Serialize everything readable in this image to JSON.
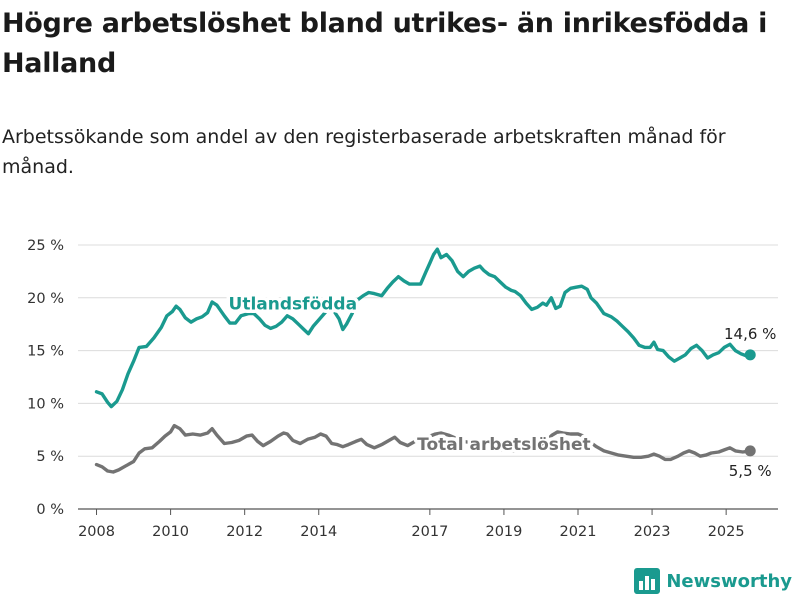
{
  "title": "Högre arbetslöshet bland utrikes- än inrikesfödda i Halland",
  "subtitle": "Arbetssökande som andel av den registerbaserade arbetskraften månad för månad.",
  "brand": {
    "name": "Newsworthy",
    "color": "#1a9a8f",
    "icon": "bar-chart-logo-icon"
  },
  "chart_data": {
    "type": "line",
    "y_ticks": [
      {
        "value": 0,
        "label": "0 %"
      },
      {
        "value": 5,
        "label": "5 %"
      },
      {
        "value": 10,
        "label": "10 %"
      },
      {
        "value": 15,
        "label": "15 %"
      },
      {
        "value": 20,
        "label": "20 %"
      },
      {
        "value": 25,
        "label": "25 %"
      }
    ],
    "x_ticks": [
      {
        "value": 2008,
        "label": "2008"
      },
      {
        "value": 2010,
        "label": "2010"
      },
      {
        "value": 2012,
        "label": "2012"
      },
      {
        "value": 2014,
        "label": "2014"
      },
      {
        "value": 2017,
        "label": "2017"
      },
      {
        "value": 2019,
        "label": "2019"
      },
      {
        "value": 2021,
        "label": "2021"
      },
      {
        "value": 2023,
        "label": "2023"
      },
      {
        "value": 2025,
        "label": "2025"
      }
    ],
    "xlim": [
      2007.5,
      2026.4
    ],
    "ylim": [
      0,
      25
    ],
    "grid": true,
    "series": [
      {
        "name": "Utlandsfödda",
        "color": "#1a9a8f",
        "end_label": "14,6 %",
        "points": [
          [
            2008.0,
            11.1
          ],
          [
            2008.15,
            10.9
          ],
          [
            2008.3,
            10.1
          ],
          [
            2008.4,
            9.7
          ],
          [
            2008.55,
            10.2
          ],
          [
            2008.7,
            11.3
          ],
          [
            2008.85,
            12.8
          ],
          [
            2009.0,
            14.0
          ],
          [
            2009.15,
            15.3
          ],
          [
            2009.35,
            15.4
          ],
          [
            2009.55,
            16.2
          ],
          [
            2009.75,
            17.2
          ],
          [
            2009.9,
            18.3
          ],
          [
            2010.05,
            18.7
          ],
          [
            2010.15,
            19.2
          ],
          [
            2010.25,
            18.9
          ],
          [
            2010.4,
            18.1
          ],
          [
            2010.55,
            17.7
          ],
          [
            2010.7,
            18.0
          ],
          [
            2010.85,
            18.2
          ],
          [
            2011.0,
            18.6
          ],
          [
            2011.12,
            19.6
          ],
          [
            2011.25,
            19.3
          ],
          [
            2011.45,
            18.3
          ],
          [
            2011.6,
            17.6
          ],
          [
            2011.75,
            17.6
          ],
          [
            2011.9,
            18.3
          ],
          [
            2012.1,
            18.5
          ],
          [
            2012.25,
            18.5
          ],
          [
            2012.4,
            18.0
          ],
          [
            2012.55,
            17.4
          ],
          [
            2012.7,
            17.1
          ],
          [
            2012.85,
            17.3
          ],
          [
            2013.0,
            17.7
          ],
          [
            2013.15,
            18.3
          ],
          [
            2013.3,
            18.0
          ],
          [
            2013.45,
            17.5
          ],
          [
            2013.6,
            17.0
          ],
          [
            2013.72,
            16.6
          ],
          [
            2013.85,
            17.3
          ],
          [
            2014.0,
            17.9
          ],
          [
            2014.2,
            18.7
          ],
          [
            2014.4,
            18.8
          ],
          [
            2014.55,
            18.0
          ],
          [
            2014.65,
            17.0
          ],
          [
            2014.75,
            17.5
          ],
          [
            2014.9,
            18.5
          ],
          [
            2015.05,
            19.8
          ],
          [
            2015.2,
            20.2
          ],
          [
            2015.35,
            20.5
          ],
          [
            2015.5,
            20.4
          ],
          [
            2015.7,
            20.2
          ],
          [
            2015.85,
            20.9
          ],
          [
            2016.0,
            21.5
          ],
          [
            2016.15,
            22.0
          ],
          [
            2016.3,
            21.6
          ],
          [
            2016.45,
            21.3
          ],
          [
            2016.6,
            21.3
          ],
          [
            2016.75,
            21.3
          ],
          [
            2016.9,
            22.5
          ],
          [
            2017.0,
            23.3
          ],
          [
            2017.1,
            24.1
          ],
          [
            2017.2,
            24.6
          ],
          [
            2017.3,
            23.8
          ],
          [
            2017.45,
            24.1
          ],
          [
            2017.6,
            23.5
          ],
          [
            2017.75,
            22.5
          ],
          [
            2017.9,
            22.0
          ],
          [
            2018.05,
            22.5
          ],
          [
            2018.2,
            22.8
          ],
          [
            2018.35,
            23.0
          ],
          [
            2018.45,
            22.6
          ],
          [
            2018.6,
            22.2
          ],
          [
            2018.75,
            22.0
          ],
          [
            2018.9,
            21.5
          ],
          [
            2019.05,
            21.0
          ],
          [
            2019.2,
            20.7
          ],
          [
            2019.3,
            20.6
          ],
          [
            2019.45,
            20.2
          ],
          [
            2019.6,
            19.5
          ],
          [
            2019.75,
            18.9
          ],
          [
            2019.9,
            19.1
          ],
          [
            2020.05,
            19.5
          ],
          [
            2020.15,
            19.3
          ],
          [
            2020.28,
            20.0
          ],
          [
            2020.4,
            19.0
          ],
          [
            2020.52,
            19.2
          ],
          [
            2020.65,
            20.5
          ],
          [
            2020.8,
            20.9
          ],
          [
            2020.95,
            21.0
          ],
          [
            2021.1,
            21.1
          ],
          [
            2021.25,
            20.8
          ],
          [
            2021.35,
            20.0
          ],
          [
            2021.5,
            19.5
          ],
          [
            2021.7,
            18.5
          ],
          [
            2021.9,
            18.2
          ],
          [
            2022.05,
            17.8
          ],
          [
            2022.2,
            17.3
          ],
          [
            2022.35,
            16.8
          ],
          [
            2022.5,
            16.2
          ],
          [
            2022.65,
            15.5
          ],
          [
            2022.8,
            15.3
          ],
          [
            2022.95,
            15.3
          ],
          [
            2023.05,
            15.8
          ],
          [
            2023.15,
            15.1
          ],
          [
            2023.3,
            15.0
          ],
          [
            2023.45,
            14.4
          ],
          [
            2023.6,
            14.0
          ],
          [
            2023.75,
            14.3
          ],
          [
            2023.9,
            14.6
          ],
          [
            2024.05,
            15.2
          ],
          [
            2024.2,
            15.5
          ],
          [
            2024.35,
            15.0
          ],
          [
            2024.5,
            14.3
          ],
          [
            2024.65,
            14.6
          ],
          [
            2024.8,
            14.8
          ],
          [
            2024.95,
            15.3
          ],
          [
            2025.1,
            15.6
          ],
          [
            2025.25,
            15.0
          ],
          [
            2025.4,
            14.7
          ],
          [
            2025.55,
            14.5
          ],
          [
            2025.65,
            14.6
          ]
        ]
      },
      {
        "name": "Total arbetslöshet",
        "color": "#737373",
        "end_label": "5,5 %",
        "points": [
          [
            2008.0,
            4.2
          ],
          [
            2008.15,
            4.0
          ],
          [
            2008.3,
            3.6
          ],
          [
            2008.45,
            3.5
          ],
          [
            2008.6,
            3.7
          ],
          [
            2008.8,
            4.1
          ],
          [
            2009.0,
            4.5
          ],
          [
            2009.15,
            5.3
          ],
          [
            2009.3,
            5.7
          ],
          [
            2009.5,
            5.8
          ],
          [
            2009.7,
            6.4
          ],
          [
            2009.85,
            6.9
          ],
          [
            2010.0,
            7.3
          ],
          [
            2010.1,
            7.9
          ],
          [
            2010.25,
            7.6
          ],
          [
            2010.4,
            7.0
          ],
          [
            2010.6,
            7.1
          ],
          [
            2010.8,
            7.0
          ],
          [
            2011.0,
            7.2
          ],
          [
            2011.12,
            7.6
          ],
          [
            2011.25,
            7.0
          ],
          [
            2011.45,
            6.2
          ],
          [
            2011.65,
            6.3
          ],
          [
            2011.85,
            6.5
          ],
          [
            2012.05,
            6.9
          ],
          [
            2012.2,
            7.0
          ],
          [
            2012.35,
            6.4
          ],
          [
            2012.5,
            6.0
          ],
          [
            2012.7,
            6.4
          ],
          [
            2012.9,
            6.9
          ],
          [
            2013.05,
            7.2
          ],
          [
            2013.15,
            7.1
          ],
          [
            2013.3,
            6.5
          ],
          [
            2013.5,
            6.2
          ],
          [
            2013.7,
            6.6
          ],
          [
            2013.9,
            6.8
          ],
          [
            2014.05,
            7.1
          ],
          [
            2014.2,
            6.9
          ],
          [
            2014.35,
            6.2
          ],
          [
            2014.5,
            6.1
          ],
          [
            2014.65,
            5.9
          ],
          [
            2014.8,
            6.1
          ],
          [
            2015.0,
            6.4
          ],
          [
            2015.15,
            6.6
          ],
          [
            2015.3,
            6.1
          ],
          [
            2015.5,
            5.8
          ],
          [
            2015.7,
            6.1
          ],
          [
            2015.9,
            6.5
          ],
          [
            2016.05,
            6.8
          ],
          [
            2016.2,
            6.3
          ],
          [
            2016.4,
            6.0
          ],
          [
            2016.6,
            6.4
          ],
          [
            2016.8,
            6.6
          ],
          [
            2017.0,
            6.9
          ],
          [
            2017.15,
            7.1
          ],
          [
            2017.3,
            7.2
          ],
          [
            2017.5,
            7.0
          ],
          [
            2017.7,
            6.7
          ],
          [
            2017.9,
            6.4
          ],
          [
            2018.1,
            6.3
          ],
          [
            2018.3,
            6.2
          ],
          [
            2018.5,
            6.0
          ],
          [
            2018.7,
            5.8
          ],
          [
            2018.9,
            5.6
          ],
          [
            2019.1,
            5.5
          ],
          [
            2019.3,
            5.5
          ],
          [
            2019.5,
            5.6
          ],
          [
            2019.7,
            5.8
          ],
          [
            2019.9,
            6.0
          ],
          [
            2020.1,
            6.3
          ],
          [
            2020.3,
            7.0
          ],
          [
            2020.45,
            7.3
          ],
          [
            2020.6,
            7.2
          ],
          [
            2020.8,
            7.1
          ],
          [
            2021.0,
            7.1
          ],
          [
            2021.15,
            6.9
          ],
          [
            2021.3,
            6.4
          ],
          [
            2021.5,
            5.9
          ],
          [
            2021.7,
            5.5
          ],
          [
            2021.9,
            5.3
          ],
          [
            2022.1,
            5.1
          ],
          [
            2022.3,
            5.0
          ],
          [
            2022.5,
            4.9
          ],
          [
            2022.7,
            4.9
          ],
          [
            2022.9,
            5.0
          ],
          [
            2023.05,
            5.2
          ],
          [
            2023.2,
            5.0
          ],
          [
            2023.35,
            4.7
          ],
          [
            2023.5,
            4.7
          ],
          [
            2023.7,
            5.0
          ],
          [
            2023.85,
            5.3
          ],
          [
            2024.0,
            5.5
          ],
          [
            2024.15,
            5.3
          ],
          [
            2024.3,
            5.0
          ],
          [
            2024.45,
            5.1
          ],
          [
            2024.6,
            5.3
          ],
          [
            2024.8,
            5.4
          ],
          [
            2024.95,
            5.6
          ],
          [
            2025.1,
            5.8
          ],
          [
            2025.25,
            5.5
          ],
          [
            2025.45,
            5.4
          ],
          [
            2025.65,
            5.5
          ]
        ]
      }
    ]
  }
}
